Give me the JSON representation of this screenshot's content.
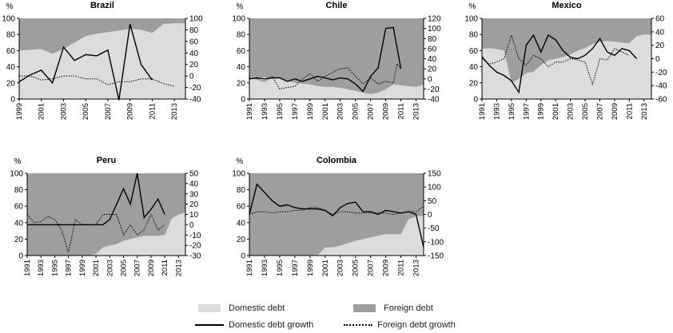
{
  "colors": {
    "domestic_fill": "#dcdcdc",
    "foreign_fill": "#9e9e9e",
    "line": "#000000",
    "axis": "#000000"
  },
  "legend": {
    "domestic_debt": "Domestic debt",
    "foreign_debt": "Foreign debt",
    "domestic_growth": "Domestic debt growth",
    "foreign_growth": "Foreign debt growth"
  },
  "chart_data": [
    {
      "type": "area",
      "title": "Brazil",
      "ylabel": "%",
      "ylim": [
        0,
        100
      ],
      "yticks": [
        0,
        20,
        40,
        60,
        80,
        100
      ],
      "y2lim": [
        -40,
        100
      ],
      "y2ticks": [
        -40,
        -20,
        0,
        20,
        40,
        60,
        80,
        100
      ],
      "xlim": [
        1999,
        2014
      ],
      "xticks": [
        1999,
        2001,
        2003,
        2005,
        2007,
        2009,
        2011,
        2013
      ],
      "x": [
        1999,
        2000,
        2001,
        2002,
        2003,
        2004,
        2005,
        2006,
        2007,
        2008,
        2009,
        2010,
        2011,
        2012,
        2013,
        2014
      ],
      "domestic_share": [
        60,
        61,
        62,
        56,
        62,
        70,
        78,
        81,
        83,
        85,
        87,
        86,
        82,
        93,
        94,
        94
      ],
      "domestic_growth": [
        -10,
        2,
        10,
        -12,
        50,
        27,
        37,
        35,
        45,
        -42,
        90,
        20,
        -7
      ],
      "foreign_growth": [
        0,
        0,
        -7,
        -5,
        0,
        0,
        -5,
        -5,
        -15,
        -10,
        -10,
        -5,
        -5,
        -13,
        -18
      ]
    },
    {
      "type": "area",
      "title": "Chile",
      "ylabel": "%",
      "ylim": [
        0,
        100
      ],
      "yticks": [
        0,
        20,
        40,
        60,
        80,
        100
      ],
      "y2lim": [
        -40,
        120
      ],
      "y2ticks": [
        -40,
        -20,
        0,
        20,
        40,
        60,
        80,
        100,
        120
      ],
      "xlim": [
        1991,
        2014
      ],
      "xticks": [
        1991,
        1993,
        1995,
        1997,
        1999,
        2001,
        2003,
        2005,
        2007,
        2009,
        2011,
        2013
      ],
      "x": [
        1991,
        1992,
        1993,
        1994,
        1995,
        1996,
        1997,
        1998,
        1999,
        2000,
        2001,
        2002,
        2003,
        2004,
        2005,
        2006,
        2007,
        2008,
        2009,
        2010,
        2011,
        2012,
        2013,
        2014
      ],
      "domestic_share": [
        27,
        27,
        27,
        26,
        26,
        22,
        20,
        19,
        18,
        16,
        15,
        15,
        14,
        12,
        10,
        8,
        6,
        8,
        12,
        18,
        17,
        16,
        15,
        18
      ],
      "domestic_growth": [
        0,
        2,
        0,
        2,
        2,
        -5,
        0,
        -5,
        0,
        5,
        2,
        -2,
        2,
        0,
        -10,
        -25,
        5,
        22,
        100,
        102,
        20
      ],
      "foreign_growth": [
        2,
        0,
        -5,
        5,
        -20,
        -17,
        -15,
        0,
        10,
        -5,
        5,
        13,
        20,
        22,
        5,
        -10,
        2,
        -10,
        -5,
        -8,
        30,
        20
      ],
      "foreign_growth_x": [
        1991,
        1992,
        1993,
        1994,
        1995,
        1996,
        1997,
        1998,
        1999,
        2000,
        2001,
        2002,
        2003,
        2004,
        2005,
        2006,
        2007,
        2008,
        2009,
        2010,
        2010.5,
        2011
      ]
    },
    {
      "type": "area",
      "title": "Mexico",
      "ylabel": "%",
      "ylim": [
        0,
        100
      ],
      "yticks": [
        0,
        20,
        40,
        60,
        80,
        100
      ],
      "y2lim": [
        -60,
        60
      ],
      "y2ticks": [
        -60,
        -40,
        -20,
        0,
        20,
        40,
        60
      ],
      "xlim": [
        1991,
        2014
      ],
      "xticks": [
        1991,
        1993,
        1995,
        1997,
        1999,
        2001,
        2003,
        2005,
        2007,
        2009,
        2011,
        2013
      ],
      "x": [
        1991,
        1992,
        1993,
        1994,
        1995,
        1996,
        1997,
        1998,
        1999,
        2000,
        2001,
        2002,
        2003,
        2004,
        2005,
        2006,
        2007,
        2008,
        2009,
        2010,
        2011,
        2012,
        2013,
        2014
      ],
      "domestic_share": [
        62,
        63,
        62,
        60,
        20,
        25,
        32,
        34,
        42,
        48,
        50,
        52,
        55,
        60,
        63,
        68,
        71,
        72,
        71,
        70,
        69,
        78,
        80,
        80
      ],
      "domestic_growth": [
        3,
        -10,
        -20,
        -25,
        -33,
        -50,
        20,
        35,
        10,
        35,
        28,
        12,
        2,
        0,
        5,
        15,
        30,
        10,
        5,
        15,
        12,
        0
      ],
      "foreign_growth": [
        0,
        -8,
        -5,
        0,
        35,
        0,
        -10,
        5,
        0,
        -12,
        -5,
        -5,
        0,
        -2,
        -5,
        -38,
        0,
        -2,
        15,
        10,
        5
      ],
      "foreign_growth_x": [
        1991,
        1992,
        1993,
        1994,
        1995,
        1996,
        1997,
        1998,
        1999,
        2000,
        2001,
        2002,
        2003,
        2004,
        2005,
        2006,
        2007,
        2008,
        2009,
        2010,
        2011
      ]
    },
    {
      "type": "area",
      "title": "Peru",
      "ylabel": "%",
      "ylim": [
        0,
        100
      ],
      "yticks": [
        0,
        20,
        40,
        60,
        80,
        100
      ],
      "y2lim": [
        -30,
        50
      ],
      "y2ticks": [
        -30,
        -20,
        -10,
        0,
        10,
        20,
        30,
        40,
        50
      ],
      "xlim": [
        1991,
        2014
      ],
      "xticks": [
        1991,
        1993,
        1995,
        1997,
        1999,
        2001,
        2003,
        2005,
        2007,
        2009,
        2011,
        2013
      ],
      "x": [
        1991,
        1992,
        1993,
        1994,
        1995,
        1996,
        1997,
        1998,
        1999,
        2000,
        2001,
        2002,
        2003,
        2004,
        2005,
        2006,
        2007,
        2008,
        2009,
        2010,
        2011,
        2012,
        2013,
        2014
      ],
      "domestic_share": [
        0,
        0,
        0,
        0,
        0,
        0,
        0,
        0,
        0,
        0,
        2,
        10,
        12,
        14,
        18,
        20,
        22,
        24,
        24,
        24,
        25,
        45,
        50,
        52
      ],
      "domestic_growth": [
        0,
        0,
        0,
        0,
        0,
        0,
        0,
        0,
        0,
        0,
        0,
        0,
        5,
        20,
        35,
        20,
        50,
        7,
        15,
        25,
        10
      ],
      "foreign_growth": [
        10,
        2,
        3,
        8,
        5,
        -5,
        -27,
        5,
        0,
        0,
        0,
        10,
        10,
        10,
        -10,
        0,
        -10,
        -5,
        10,
        -5,
        0
      ],
      "foreign_growth_x": [
        1991,
        1992,
        1993,
        1994,
        1995,
        1996,
        1997,
        1998,
        1999,
        2000,
        2001,
        2002,
        2003,
        2004,
        2005,
        2006,
        2007,
        2008,
        2009,
        2010,
        2011
      ]
    },
    {
      "type": "area",
      "title": "Colombia",
      "ylabel": "%",
      "ylim": [
        0,
        100
      ],
      "yticks": [
        0,
        20,
        40,
        60,
        80,
        100
      ],
      "y2lim": [
        -150,
        150
      ],
      "y2ticks": [
        -150,
        -100,
        -50,
        0,
        50,
        100,
        150
      ],
      "xlim": [
        1991,
        2014
      ],
      "xticks": [
        1991,
        1993,
        1995,
        1997,
        1999,
        2001,
        2003,
        2005,
        2007,
        2009,
        2011,
        2013
      ],
      "x": [
        1991,
        1992,
        1993,
        1994,
        1995,
        1996,
        1997,
        1998,
        1999,
        2000,
        2001,
        2002,
        2003,
        2004,
        2005,
        2006,
        2007,
        2008,
        2009,
        2010,
        2011,
        2012,
        2013,
        2014
      ],
      "domestic_share": [
        0,
        0,
        0,
        0,
        0,
        0,
        0,
        0,
        0,
        0,
        10,
        10,
        12,
        15,
        18,
        20,
        22,
        24,
        26,
        26,
        26,
        44,
        48,
        48
      ],
      "domestic_growth": [
        0,
        110,
        80,
        50,
        30,
        35,
        25,
        20,
        20,
        20,
        15,
        -5,
        25,
        40,
        45,
        10,
        10,
        0,
        15,
        10,
        5,
        10,
        0,
        -120
      ],
      "foreign_growth": [
        0,
        10,
        10,
        5,
        10,
        10,
        15,
        15,
        25,
        25,
        15,
        0,
        10,
        10,
        5,
        5,
        5,
        5,
        5,
        0,
        5,
        10,
        10,
        30
      ]
    }
  ]
}
